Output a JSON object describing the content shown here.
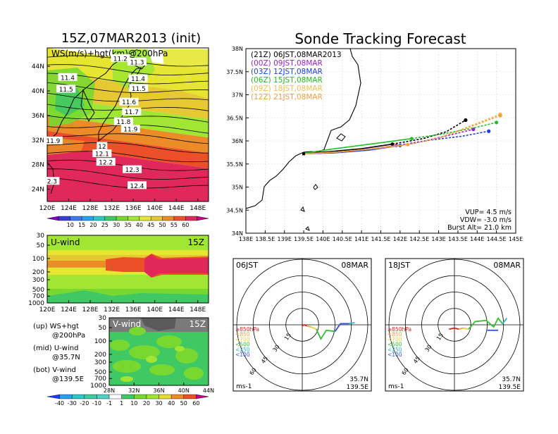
{
  "left": {
    "title": "15Z,07MAR2013 (init)",
    "map": {
      "label": "WS(m/s)+hgt(km)@200hPa",
      "lat_ticks": [
        "44N",
        "40N",
        "36N",
        "32N",
        "28N",
        "24N"
      ],
      "lon_ticks": [
        "120E",
        "124E",
        "128E",
        "132E",
        "136E",
        "140E",
        "144E",
        "148E"
      ],
      "contour_labels": [
        {
          "text": "11.2",
          "lon": 133.6,
          "lat": 45.3
        },
        {
          "text": "11.3",
          "lon": 136.7,
          "lat": 44.7
        },
        {
          "text": "11.4",
          "lon": 123.8,
          "lat": 42.2
        },
        {
          "text": "11.4",
          "lon": 136.9,
          "lat": 42.0
        },
        {
          "text": "11.5",
          "lon": 123.5,
          "lat": 40.3
        },
        {
          "text": "11.5",
          "lon": 137.0,
          "lat": 40.4
        },
        {
          "text": "11.6",
          "lon": 135.2,
          "lat": 38.2
        },
        {
          "text": "11.7",
          "lon": 135.7,
          "lat": 36.6
        },
        {
          "text": "11.8",
          "lon": 134.2,
          "lat": 35.0
        },
        {
          "text": "11.9",
          "lon": 135.5,
          "lat": 33.8
        },
        {
          "text": "11.9",
          "lon": 121.1,
          "lat": 31.9
        },
        {
          "text": "12",
          "lon": 130.2,
          "lat": 31.0
        },
        {
          "text": "12.1",
          "lon": 130.2,
          "lat": 29.8
        },
        {
          "text": "12.2",
          "lon": 130.9,
          "lat": 28.4
        },
        {
          "text": "12.3",
          "lon": 135.8,
          "lat": 27.2
        },
        {
          "text": "12.4",
          "lon": 136.7,
          "lat": 24.6
        },
        {
          "text": "2.3",
          "lon": 120.9,
          "lat": 25.3
        }
      ],
      "colorbar_labels": [
        "10",
        "15",
        "20",
        "25",
        "30",
        "35",
        "40",
        "45",
        "50",
        "55",
        "60"
      ],
      "colors": [
        "#8000c0",
        "#3c3cd8",
        "#3c78f0",
        "#28a0f0",
        "#2cc8c8",
        "#40c864",
        "#78d830",
        "#a0e632",
        "#e6e632",
        "#e6c832",
        "#eb8c28",
        "#eb5028",
        "#e0285a",
        "#c8008c"
      ]
    },
    "uwind": {
      "label": "U-wind",
      "time": "15Z",
      "p_ticks": [
        "30",
        "50",
        "100",
        "200",
        "300",
        "500",
        "700",
        "1000"
      ],
      "lon_ticks": [
        "120E",
        "124E",
        "128E",
        "132E",
        "136E",
        "140E",
        "144E",
        "148E"
      ]
    },
    "vwind": {
      "label": "V-wind",
      "time": "15Z",
      "p_ticks": [
        "30",
        "50",
        "100",
        "200",
        "300",
        "500",
        "700",
        "1000"
      ],
      "lat_ticks": [
        "28N",
        "32N",
        "36N",
        "40N",
        "44N"
      ]
    },
    "legend_lines": [
      {
        "a": "(up) WS+hgt",
        "b": "@200hPa"
      },
      {
        "a": "(mid) U-wind",
        "b": "@35.7N"
      },
      {
        "a": "(bot) V-wind",
        "b": "@139.5E"
      }
    ],
    "bottom_colorbar_labels": [
      "-40",
      "-30",
      "-20",
      "-10",
      "-1",
      "1",
      "10",
      "20",
      "30",
      "40",
      "50",
      "60"
    ],
    "bottom_colorbar_colors": [
      "#1e3cff",
      "#28a0f0",
      "#2cc8c8",
      "#40c8a0",
      "#50d2be",
      "#ffffff",
      "#40c864",
      "#78d830",
      "#a0e632",
      "#e6dc32",
      "#eb8c28",
      "#eb5028",
      "#c8008c"
    ]
  },
  "right": {
    "title": "Sonde Tracking Forecast",
    "lat_ticks": [
      "38N",
      "37.5N",
      "37N",
      "36.5N",
      "36N",
      "35.5N",
      "35N",
      "34.5N",
      "34N"
    ],
    "lon_ticks": [
      "138E",
      "138.5E",
      "139E",
      "139.5E",
      "140E",
      "140.5E",
      "141E",
      "141.5E",
      "142E",
      "142.5E",
      "143E",
      "143.5E",
      "144E",
      "144.5E",
      "145E"
    ],
    "launch_lines": [
      {
        "text": "(21Z) 06JST,08MAR2013",
        "color": "#000000"
      },
      {
        "text": "(00Z) 09JST,08MAR",
        "color": "#a020c8"
      },
      {
        "text": "(03Z) 12JST,08MAR",
        "color": "#2040e0"
      },
      {
        "text": "(06Z) 15JST,08MAR",
        "color": "#20c020"
      },
      {
        "text": "(09Z) 18JST,08MAR",
        "color": "#f0c050"
      },
      {
        "text": "(12Z) 21JST,08MAR",
        "color": "#f0a040"
      }
    ],
    "params": [
      "VUP= 4.5 m/s",
      "VDW= -3.0 m/s",
      "Burst Alt= 21.0 km"
    ]
  },
  "chart_data": [
    {
      "type": "line",
      "title": "Sonde Tracking Forecast",
      "xlabel": "",
      "ylabel": "",
      "xlim": [
        138,
        145
      ],
      "ylim": [
        34,
        38
      ],
      "series": [
        {
          "name": "(21Z) 06JST,08MAR2013",
          "color": "#000000",
          "x": [
            139.5,
            140.2,
            141.0,
            141.8,
            142.6,
            143.2,
            143.7
          ],
          "y": [
            35.73,
            35.77,
            35.83,
            35.93,
            36.05,
            36.2,
            36.45
          ]
        },
        {
          "name": "(00Z) 09JST,08MAR",
          "color": "#a020c8",
          "x": [
            139.5,
            140.3,
            141.1,
            141.9,
            142.7,
            143.4,
            143.9
          ],
          "y": [
            35.72,
            35.75,
            35.81,
            35.9,
            36.01,
            36.15,
            36.25
          ]
        },
        {
          "name": "(03Z) 12JST,08MAR",
          "color": "#2040e0",
          "x": [
            139.5,
            140.3,
            141.2,
            142.0,
            142.8,
            143.6,
            144.3
          ],
          "y": [
            35.72,
            35.74,
            35.8,
            35.9,
            36.02,
            36.1,
            36.21
          ]
        },
        {
          "name": "(06Z) 15JST,08MAR",
          "color": "#20c020",
          "x": [
            139.5,
            140.2,
            141.4,
            142.3,
            143.1,
            143.9,
            144.5
          ],
          "y": [
            35.73,
            35.82,
            35.95,
            36.05,
            36.15,
            36.28,
            36.4
          ]
        },
        {
          "name": "(09Z) 18JST,08MAR",
          "color": "#f0c050",
          "x": [
            139.5,
            140.4,
            141.3,
            142.2,
            143.0,
            143.9,
            144.6
          ],
          "y": [
            35.72,
            35.76,
            35.83,
            35.92,
            36.06,
            36.35,
            36.58
          ]
        },
        {
          "name": "(12Z) 21JST,08MAR",
          "color": "#f0a040",
          "x": [
            139.5,
            140.4,
            141.3,
            142.2,
            143.0,
            143.9,
            144.6
          ],
          "y": [
            35.72,
            35.76,
            35.83,
            35.92,
            36.06,
            36.33,
            36.55
          ]
        }
      ]
    }
  ],
  "hodographs": [
    {
      "time_label": "06JST",
      "date_label": "08MAR",
      "ring_labels": [
        "15",
        "30",
        "45",
        "60"
      ],
      "level_labels": [
        {
          "text": "≥850hPa",
          "color": "#e02020"
        },
        {
          "text": "<850",
          "color": "#f0a040"
        },
        {
          "text": "<700",
          "color": "#e8d040"
        },
        {
          "text": "<500",
          "color": "#30c030"
        },
        {
          "text": "<250",
          "color": "#28b4c8"
        },
        {
          "text": "<100",
          "color": "#3050e0"
        }
      ],
      "units": "ms-1",
      "lat": "35.7N",
      "lon": "139.5E",
      "segments": [
        {
          "color": "#e02020",
          "pts": [
            [
              0,
              -1
            ],
            [
              2,
              0
            ],
            [
              4,
              -1
            ]
          ]
        },
        {
          "color": "#f0a040",
          "pts": [
            [
              4,
              -1
            ],
            [
              8,
              -2
            ]
          ]
        },
        {
          "color": "#e8d040",
          "pts": [
            [
              8,
              -2
            ],
            [
              13,
              -4
            ]
          ]
        },
        {
          "color": "#30c030",
          "pts": [
            [
              13,
              -4
            ],
            [
              17,
              -13
            ],
            [
              22,
              -5
            ],
            [
              30,
              -6
            ]
          ]
        },
        {
          "color": "#3050e0",
          "pts": [
            [
              30,
              -6
            ],
            [
              35,
              1
            ],
            [
              43,
              1
            ]
          ]
        },
        {
          "color": "#28b4c8",
          "pts": [
            [
              43,
              1
            ],
            [
              48,
              2
            ]
          ]
        }
      ]
    },
    {
      "time_label": "18JST",
      "date_label": "08MAR",
      "ring_labels": [
        "15",
        "30",
        "45",
        "60"
      ],
      "level_labels": [
        {
          "text": "≥850hPa",
          "color": "#e02020"
        },
        {
          "text": "<850",
          "color": "#f0a040"
        },
        {
          "text": "<700",
          "color": "#e8d040"
        },
        {
          "text": "<500",
          "color": "#30c030"
        },
        {
          "text": "<250",
          "color": "#28b4c8"
        },
        {
          "text": "<100",
          "color": "#3050e0"
        }
      ],
      "units": "ms-1",
      "lat": "35.7N",
      "lon": "139.5E",
      "segments": [
        {
          "color": "#e02020",
          "pts": [
            [
              -5,
              -4
            ],
            [
              0,
              -3
            ],
            [
              4,
              -4
            ]
          ]
        },
        {
          "color": "#f0a040",
          "pts": [
            [
              4,
              -4
            ],
            [
              8,
              -3
            ]
          ]
        },
        {
          "color": "#e8d040",
          "pts": [
            [
              8,
              -3
            ],
            [
              13,
              -4
            ]
          ]
        },
        {
          "color": "#30c030",
          "pts": [
            [
              13,
              -4
            ],
            [
              19,
              3
            ],
            [
              29,
              4
            ],
            [
              36,
              -2
            ],
            [
              40,
              6
            ],
            [
              44,
              1
            ]
          ]
        },
        {
          "color": "#3050e0",
          "pts": [
            [
              30,
              -5
            ],
            [
              40,
              -5
            ]
          ]
        },
        {
          "color": "#28b4c8",
          "pts": [
            [
              44,
              1
            ],
            [
              48,
              6
            ]
          ]
        }
      ]
    }
  ]
}
